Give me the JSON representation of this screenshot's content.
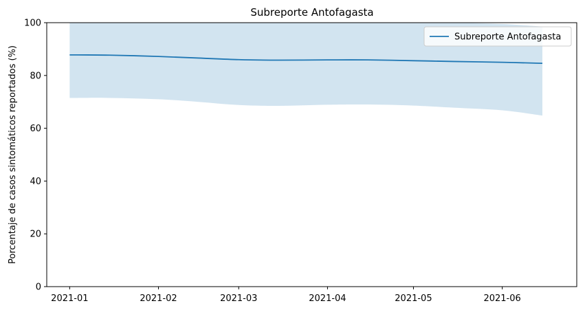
{
  "chart_data": {
    "type": "line",
    "title": "Subreporte Antofagasta",
    "xlabel": "",
    "ylabel": "Porcentaje de casos sintomáticos reportados (%)",
    "ylim": [
      0,
      100
    ],
    "yticks": [
      0,
      20,
      40,
      60,
      80,
      100
    ],
    "xlim": [
      "2020-12-24",
      "2021-06-27"
    ],
    "xticks": [
      {
        "date": "2021-01-01",
        "label": "2021-01"
      },
      {
        "date": "2021-02-01",
        "label": "2021-02"
      },
      {
        "date": "2021-03-01",
        "label": "2021-03"
      },
      {
        "date": "2021-04-01",
        "label": "2021-04"
      },
      {
        "date": "2021-05-01",
        "label": "2021-05"
      },
      {
        "date": "2021-06-01",
        "label": "2021-06"
      }
    ],
    "grid": false,
    "legend_position": "top-right",
    "series": [
      {
        "name": "Subreporte Antofagasta",
        "color": "#1f77b4",
        "band_color": "#1f77b4",
        "band_opacity": 0.2,
        "points": [
          {
            "x": "2021-01-01",
            "y": 87.8,
            "lower": 71.5,
            "upper": 100
          },
          {
            "x": "2021-01-15",
            "y": 87.7,
            "lower": 71.5,
            "upper": 100
          },
          {
            "x": "2021-02-01",
            "y": 87.2,
            "lower": 71.0,
            "upper": 100
          },
          {
            "x": "2021-02-15",
            "y": 86.6,
            "lower": 70.0,
            "upper": 100
          },
          {
            "x": "2021-03-01",
            "y": 86.0,
            "lower": 68.8,
            "upper": 100
          },
          {
            "x": "2021-03-15",
            "y": 85.8,
            "lower": 68.5,
            "upper": 100
          },
          {
            "x": "2021-04-01",
            "y": 85.9,
            "lower": 68.9,
            "upper": 100
          },
          {
            "x": "2021-04-15",
            "y": 85.9,
            "lower": 69.0,
            "upper": 100
          },
          {
            "x": "2021-05-01",
            "y": 85.6,
            "lower": 68.6,
            "upper": 100
          },
          {
            "x": "2021-05-15",
            "y": 85.3,
            "lower": 67.8,
            "upper": 100
          },
          {
            "x": "2021-06-01",
            "y": 85.0,
            "lower": 66.8,
            "upper": 99.5
          },
          {
            "x": "2021-06-15",
            "y": 84.6,
            "lower": 64.8,
            "upper": 98.5
          }
        ]
      }
    ]
  }
}
